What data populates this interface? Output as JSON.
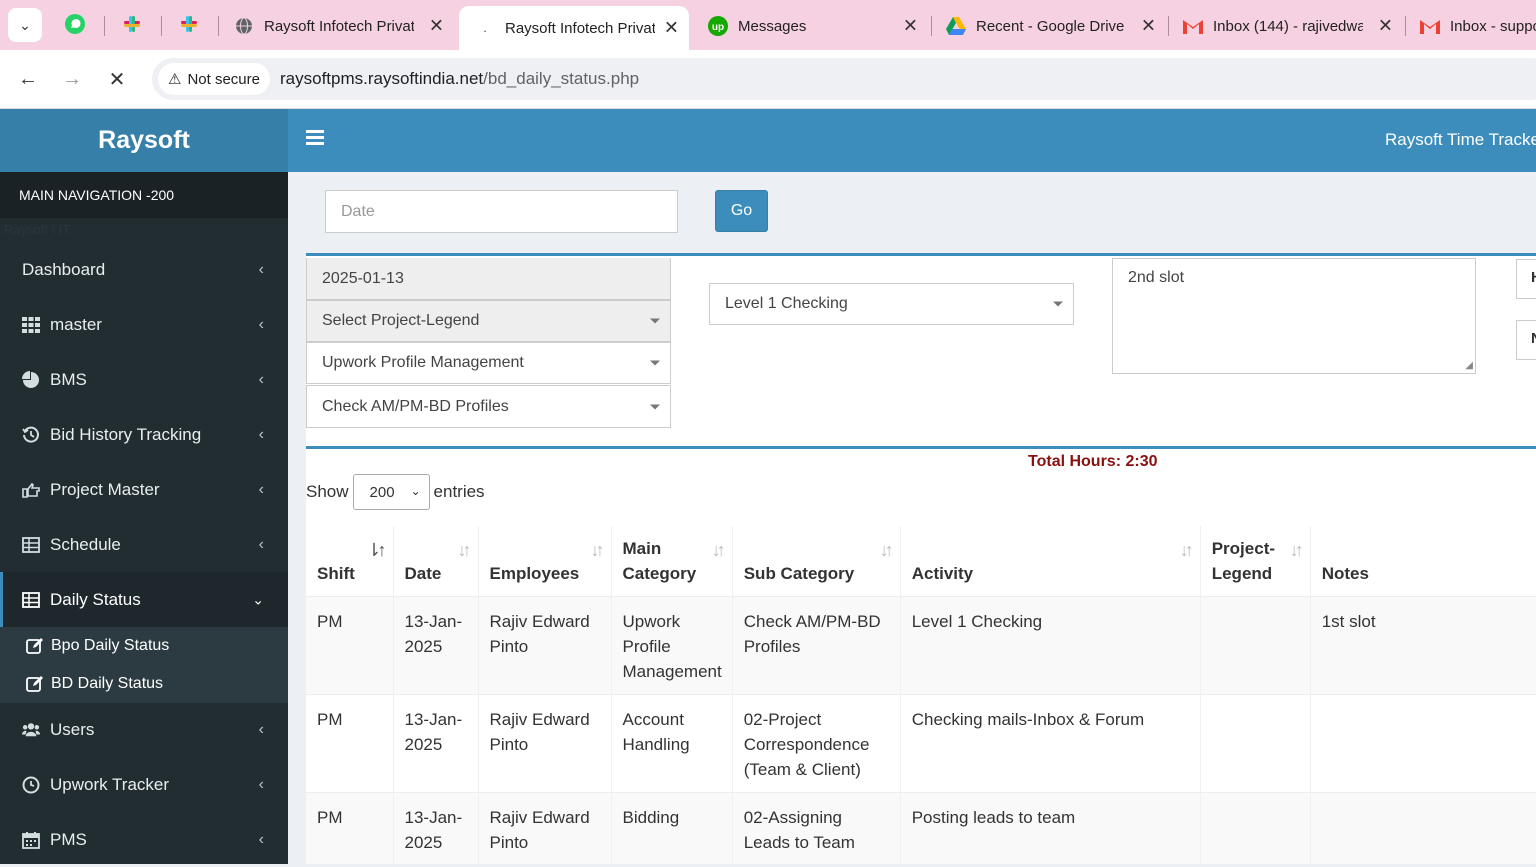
{
  "browser": {
    "tabs": [
      {
        "title": "Raysoft Infotech Privat",
        "icon": "globe-icon"
      },
      {
        "title": "Raysoft Infotech Privat",
        "icon": "loading-icon",
        "active": true
      },
      {
        "title": "Messages",
        "icon": "upwork-icon"
      },
      {
        "title": "Recent - Google Drive",
        "icon": "drive-icon"
      },
      {
        "title": "Inbox (144) - rajivedwa",
        "icon": "gmail-icon"
      },
      {
        "title": "Inbox - suppo",
        "icon": "gmail-icon"
      }
    ],
    "security": "Not secure",
    "url_host": "raysoftpms.raysoftindia.net",
    "url_path": "/bd_daily_status.php"
  },
  "app": {
    "logo": "Raysoft",
    "header_right": "Raysoft Time Tracker"
  },
  "sidebar": {
    "header": "MAIN NAVIGATION -200",
    "ghost_text": "Raysoft \\ IT",
    "items": [
      {
        "label": "Dashboard",
        "icon": "none"
      },
      {
        "label": "master",
        "icon": "grid-icon"
      },
      {
        "label": "BMS",
        "icon": "pie-chart-icon"
      },
      {
        "label": "Bid History Tracking",
        "icon": "history-icon"
      },
      {
        "label": "Project Master",
        "icon": "hand-point-icon"
      },
      {
        "label": "Schedule",
        "icon": "table-icon"
      },
      {
        "label": "Daily Status",
        "icon": "table-icon"
      },
      {
        "label": "Users",
        "icon": "users-icon"
      },
      {
        "label": "Upwork Tracker",
        "icon": "clock-icon"
      },
      {
        "label": "PMS",
        "icon": "calendar-icon"
      }
    ],
    "submenu": [
      {
        "label": "Bpo Daily Status",
        "icon": "edit-icon"
      },
      {
        "label": "BD Daily Status",
        "icon": "edit-icon"
      }
    ]
  },
  "filter": {
    "date_placeholder": "Date",
    "go_label": "Go"
  },
  "form": {
    "date_value": "2025-01-13",
    "project_legend": "Select Project-Legend",
    "main_category": "Upwork Profile Management",
    "sub_category": "Check AM/PM-BD Profiles",
    "activity": "Level 1 Checking",
    "notes": "2nd slot",
    "edge_1": "H",
    "edge_2": "N"
  },
  "summary": {
    "total_hours": "Total Hours: 2:30",
    "show_label": "Show",
    "entries_value": "200",
    "entries_label": "entries"
  },
  "table": {
    "columns": [
      "Shift",
      "Date",
      "Employees",
      "Main Category",
      "Sub Category",
      "Activity",
      "Project-Legend",
      "Notes"
    ],
    "rows": [
      {
        "shift": "PM",
        "date": "13-Jan-2025",
        "employee": "Rajiv Edward Pinto",
        "main": "Upwork Profile Management",
        "sub": "Check AM/PM-BD Profiles",
        "activity": "Level 1 Checking",
        "legend": "",
        "notes": "1st slot"
      },
      {
        "shift": "PM",
        "date": "13-Jan-2025",
        "employee": "Rajiv Edward Pinto",
        "main": "Account Handling",
        "sub": "02-Project Correspondence (Team & Client)",
        "activity": "Checking mails-Inbox & Forum",
        "legend": "",
        "notes": ""
      },
      {
        "shift": "PM",
        "date": "13-Jan-2025",
        "employee": "Rajiv Edward Pinto",
        "main": "Bidding",
        "sub": "02-Assigning Leads to Team",
        "activity": "Posting leads to team",
        "legend": "",
        "notes": ""
      }
    ]
  }
}
